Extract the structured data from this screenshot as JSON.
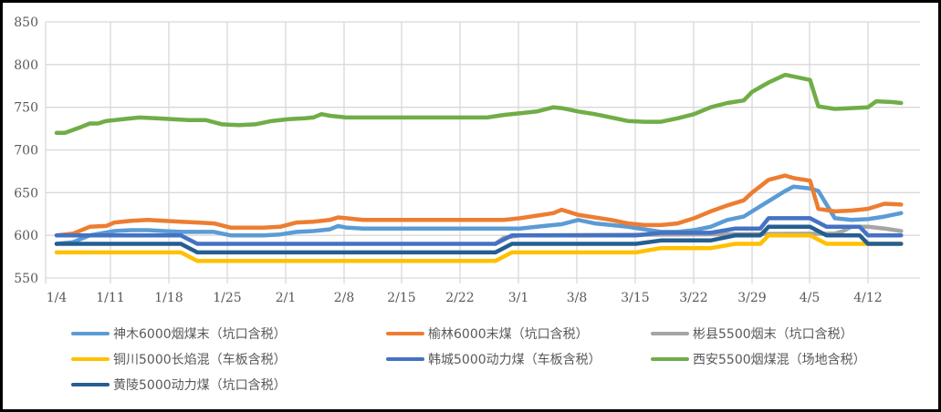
{
  "chart_data": {
    "type": "line",
    "title": "",
    "xlabel": "",
    "ylabel": "",
    "ylim": [
      550,
      850
    ],
    "yticks": [
      550,
      600,
      650,
      700,
      750,
      800,
      850
    ],
    "xtick_labels": [
      "1/4",
      "1/11",
      "1/18",
      "1/25",
      "2/1",
      "2/8",
      "2/15",
      "2/22",
      "3/1",
      "3/8",
      "3/15",
      "3/22",
      "3/29",
      "4/5",
      "4/12"
    ],
    "grid": true,
    "legend_position": "bottom",
    "x_unit": "days since 1/4",
    "series": [
      {
        "name": "神木6000烟煤末（坑口含税）",
        "color": "#5B9BD5",
        "x": [
          0,
          2,
          4,
          7,
          9,
          11,
          13,
          15,
          17,
          19,
          21,
          23,
          25,
          27,
          29,
          31,
          33,
          34,
          35,
          37,
          40,
          44,
          48,
          52,
          54,
          56,
          58,
          60,
          61,
          63,
          65,
          67,
          69,
          71,
          73,
          75,
          77,
          79,
          81,
          83,
          84,
          86,
          88,
          89,
          91,
          92,
          94,
          96,
          98,
          100,
          102
        ],
        "values": [
          590,
          592,
          600,
          605,
          606,
          606,
          605,
          604,
          604,
          604,
          600,
          600,
          600,
          601,
          604,
          605,
          607,
          611,
          609,
          608,
          608,
          608,
          608,
          608,
          608,
          608,
          610,
          612,
          613,
          618,
          614,
          612,
          610,
          607,
          604,
          604,
          606,
          610,
          618,
          622,
          628,
          640,
          652,
          657,
          655,
          652,
          620,
          618,
          619,
          622,
          626
        ]
      },
      {
        "name": "榆林6000末煤（坑口含税）",
        "color": "#ED7D31",
        "x": [
          0,
          2,
          4,
          6,
          7,
          9,
          11,
          13,
          15,
          17,
          19,
          21,
          23,
          25,
          27,
          29,
          31,
          33,
          34,
          35,
          37,
          40,
          44,
          48,
          52,
          54,
          56,
          58,
          60,
          61,
          63,
          65,
          67,
          69,
          71,
          73,
          75,
          77,
          79,
          81,
          83,
          84,
          86,
          88,
          89,
          91,
          92,
          94,
          96,
          98,
          100,
          102
        ],
        "values": [
          600,
          602,
          610,
          611,
          615,
          617,
          618,
          617,
          616,
          615,
          614,
          609,
          609,
          609,
          610,
          615,
          616,
          618,
          621,
          620,
          618,
          618,
          618,
          618,
          618,
          618,
          620,
          623,
          626,
          630,
          624,
          621,
          618,
          614,
          612,
          612,
          614,
          620,
          628,
          635,
          641,
          650,
          665,
          670,
          667,
          664,
          631,
          628,
          629,
          631,
          637,
          636
        ]
      },
      {
        "name": "彬县5500烟末（坑口含税）",
        "color": "#A5A5A5",
        "x": [
          53,
          54,
          56,
          94,
          95,
          96,
          98,
          100,
          102
        ],
        "values": [
          590,
          597,
          600,
          602,
          605,
          610,
          610,
          608,
          605
        ]
      },
      {
        "name": "铜川5000长焰混（车板含税）",
        "color": "#FFC000",
        "x": [
          0,
          15,
          17,
          53,
          55,
          70,
          73,
          79,
          82,
          85,
          86,
          91,
          93,
          97,
          102
        ],
        "values": [
          580,
          580,
          570,
          570,
          580,
          580,
          585,
          585,
          590,
          590,
          600,
          600,
          590,
          590,
          590
        ]
      },
      {
        "name": "韩城5000动力煤（车板含税）",
        "color": "#4472C4",
        "x": [
          0,
          15,
          17,
          53,
          55,
          70,
          73,
          79,
          82,
          85,
          86,
          91,
          93,
          97,
          98,
          102
        ],
        "values": [
          600,
          600,
          590,
          590,
          600,
          600,
          603,
          603,
          608,
          608,
          620,
          620,
          610,
          610,
          600,
          600
        ]
      },
      {
        "name": "西安5500烟煤混（场地含税）",
        "color": "#70AD47",
        "x": [
          0,
          1,
          3,
          4,
          5,
          6,
          8,
          10,
          12,
          14,
          16,
          18,
          20,
          22,
          24,
          26,
          28,
          30,
          31,
          32,
          33,
          35,
          37,
          40,
          44,
          48,
          52,
          54,
          56,
          58,
          60,
          61,
          63,
          65,
          67,
          69,
          71,
          73,
          75,
          77,
          79,
          81,
          83,
          84,
          86,
          88,
          89,
          91,
          92,
          94,
          96,
          98,
          99,
          101,
          102
        ],
        "values": [
          720,
          720,
          727,
          731,
          731,
          734,
          736,
          738,
          737,
          736,
          735,
          735,
          730,
          729,
          730,
          734,
          736,
          737,
          738,
          742,
          740,
          738,
          738,
          738,
          738,
          738,
          738,
          741,
          743,
          745,
          750,
          749,
          745,
          742,
          738,
          734,
          733,
          733,
          737,
          742,
          750,
          755,
          758,
          768,
          779,
          788,
          786,
          782,
          751,
          748,
          749,
          750,
          757,
          756,
          755
        ]
      },
      {
        "name": "黄陵5000动力煤（坑口含税）",
        "color": "#255E91",
        "x": [
          0,
          15,
          17,
          53,
          55,
          70,
          73,
          79,
          82,
          85,
          86,
          91,
          93,
          97,
          98,
          102
        ],
        "values": [
          590,
          590,
          580,
          580,
          590,
          590,
          594,
          594,
          600,
          600,
          610,
          610,
          600,
          600,
          590,
          590
        ]
      }
    ]
  },
  "legend": {
    "rows": [
      [
        0,
        1,
        2
      ],
      [
        3,
        4,
        5
      ],
      [
        6
      ]
    ]
  }
}
